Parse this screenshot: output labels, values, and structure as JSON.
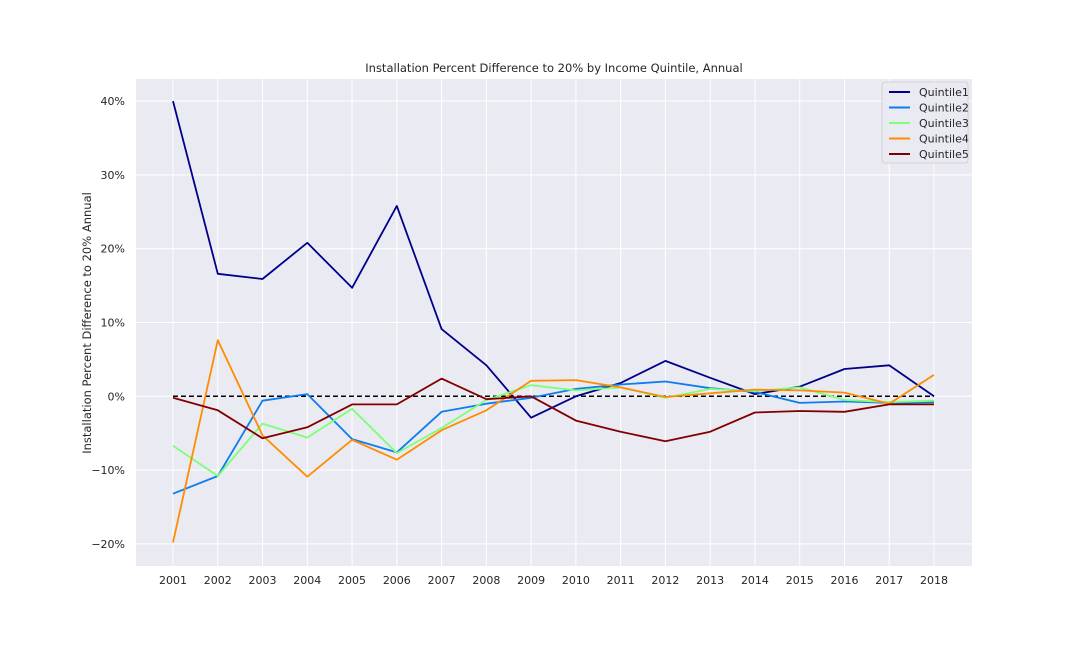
{
  "chart_data": {
    "type": "line",
    "title": "Installation Percent Difference to 20% by Income Quintile, Annual",
    "xlabel": "",
    "ylabel": "Installation Percent Difference to 20% Annual",
    "x": [
      2001,
      2002,
      2003,
      2004,
      2005,
      2006,
      2007,
      2008,
      2009,
      2010,
      2011,
      2012,
      2013,
      2014,
      2015,
      2016,
      2017,
      2018
    ],
    "ylim": [
      -0.23,
      0.43
    ],
    "yticks": [
      -0.2,
      -0.1,
      0.0,
      0.1,
      0.2,
      0.3,
      0.4
    ],
    "ytick_labels": [
      "−20%",
      "−10%",
      "0%",
      "10%",
      "20%",
      "30%",
      "40%"
    ],
    "grid": true,
    "legend_position": "top-right",
    "reference_line": {
      "y": 0.0,
      "style": "dashed",
      "color": "#000000"
    },
    "series": [
      {
        "name": "Quintile1",
        "color": "#00008b",
        "values": [
          0.4,
          0.166,
          0.159,
          0.208,
          0.147,
          0.258,
          0.091,
          0.042,
          -0.029,
          0.0,
          0.018,
          0.048,
          0.025,
          0.003,
          0.013,
          0.037,
          0.042,
          0.0
        ]
      },
      {
        "name": "Quintile2",
        "color": "#0c7cf0",
        "values": [
          -0.132,
          -0.108,
          -0.006,
          0.003,
          -0.058,
          -0.076,
          -0.021,
          -0.01,
          -0.002,
          0.01,
          0.016,
          0.02,
          0.011,
          0.006,
          -0.009,
          -0.007,
          -0.009,
          -0.008
        ]
      },
      {
        "name": "Quintile3",
        "color": "#7cff79",
        "values": [
          -0.067,
          -0.108,
          -0.037,
          -0.056,
          -0.017,
          -0.077,
          -0.043,
          -0.005,
          0.015,
          0.008,
          0.012,
          -0.002,
          0.01,
          0.007,
          0.012,
          -0.005,
          -0.008,
          -0.006
        ]
      },
      {
        "name": "Quintile4",
        "color": "#ff8c00",
        "values": [
          -0.198,
          0.076,
          -0.053,
          -0.109,
          -0.059,
          -0.086,
          -0.046,
          -0.019,
          0.021,
          0.022,
          0.012,
          -0.001,
          0.004,
          0.009,
          0.008,
          0.005,
          -0.01,
          0.029
        ]
      },
      {
        "name": "Quintile5",
        "color": "#800000",
        "values": [
          -0.002,
          -0.019,
          -0.057,
          -0.042,
          -0.011,
          -0.011,
          0.024,
          -0.004,
          0.0,
          -0.033,
          -0.048,
          -0.061,
          -0.048,
          -0.022,
          -0.02,
          -0.021,
          -0.011,
          -0.011
        ]
      }
    ]
  }
}
